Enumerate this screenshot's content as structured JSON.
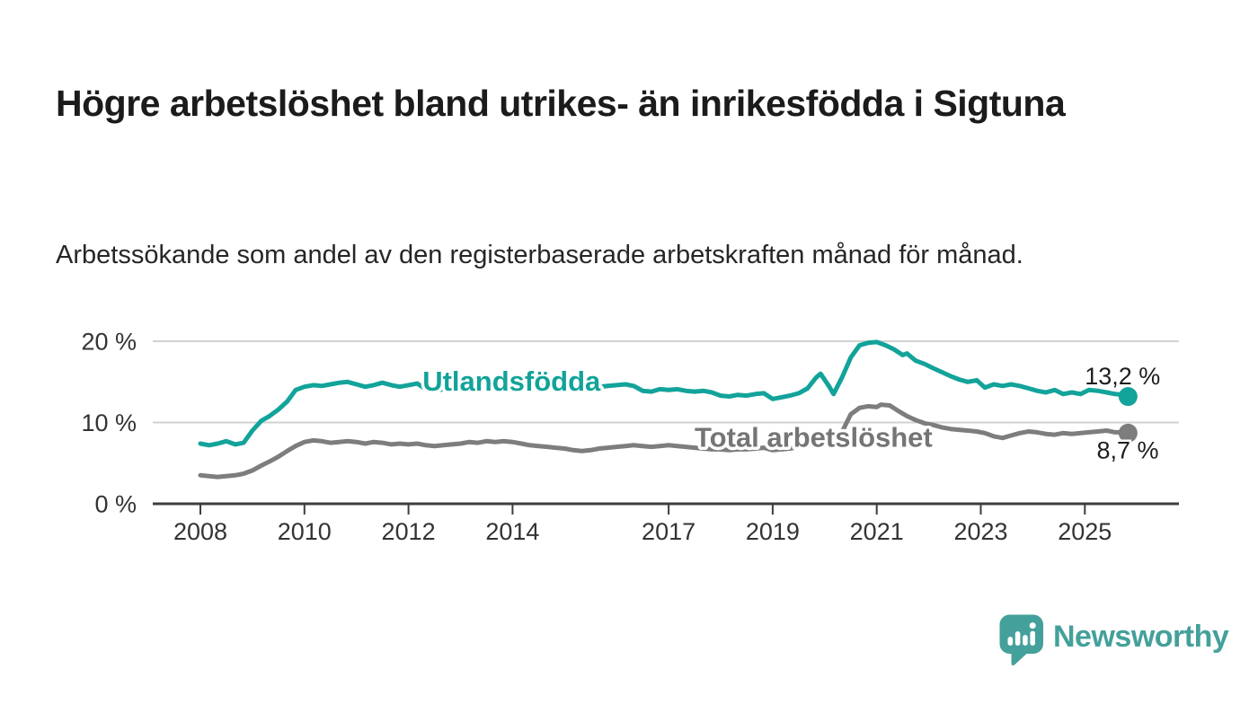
{
  "title": "Högre arbetslöshet bland utrikes- än inrikesfödda i Sigtuna",
  "subtitle": "Arbetssökande som andel av den registerbaserade arbetskraften månad för månad.",
  "branding": {
    "logo_text": "Newsworthy",
    "logo_icon": "bar-chart-speech-bubble",
    "brand_color": "#44a09a"
  },
  "colors": {
    "foreign_born_line": "#12a39a",
    "total_line": "#7d7d7d",
    "total_label": "#757575",
    "gridline": "#d2d2d2",
    "axis": "#3d3d3d",
    "tick_label": "#333333",
    "end_label": "#1d1d1d",
    "background": "#ffffff"
  },
  "chart_data": {
    "type": "line",
    "title": "Högre arbetslöshet bland utrikes- än inrikesfödda i Sigtuna",
    "subtitle": "Arbetssökande som andel av den registerbaserade arbetskraften månad för månad.",
    "xlabel": "",
    "ylabel": "",
    "x_unit": "decimal year (monthly observations)",
    "y_unit": "percent of labour force",
    "ylim": [
      0,
      22
    ],
    "xlim": [
      2007.1,
      2026.9
    ],
    "grid": "horizontal-only",
    "legend_position": "inline-on-lines",
    "yticks": [
      {
        "value": 0,
        "label": "0 %"
      },
      {
        "value": 10,
        "label": "10 %"
      },
      {
        "value": 20,
        "label": "20 %"
      }
    ],
    "xticks": [
      {
        "value": 2008,
        "label": "2008"
      },
      {
        "value": 2010,
        "label": "2010"
      },
      {
        "value": 2012,
        "label": "2012"
      },
      {
        "value": 2014,
        "label": "2014"
      },
      {
        "value": 2017,
        "label": "2017"
      },
      {
        "value": 2019,
        "label": "2019"
      },
      {
        "value": 2021,
        "label": "2021"
      },
      {
        "value": 2023,
        "label": "2023"
      },
      {
        "value": 2025,
        "label": "2025"
      }
    ],
    "series": [
      {
        "name": "Utlandsfödda",
        "color": "#12a39a",
        "end_value": 13.2,
        "end_label": "13,2 %",
        "label_anchor": {
          "year": 2012.27,
          "pct": 13.9,
          "align": "start"
        },
        "end_label_anchor": {
          "year": 2026.45,
          "pct": 14.7,
          "align": "end"
        },
        "points": [
          [
            2008.0,
            7.4
          ],
          [
            2008.17,
            7.2
          ],
          [
            2008.33,
            7.4
          ],
          [
            2008.5,
            7.7
          ],
          [
            2008.67,
            7.3
          ],
          [
            2008.83,
            7.5
          ],
          [
            2009.0,
            9.0
          ],
          [
            2009.17,
            10.2
          ],
          [
            2009.33,
            10.8
          ],
          [
            2009.5,
            11.6
          ],
          [
            2009.67,
            12.6
          ],
          [
            2009.83,
            14.0
          ],
          [
            2010.0,
            14.4
          ],
          [
            2010.17,
            14.6
          ],
          [
            2010.33,
            14.5
          ],
          [
            2010.5,
            14.7
          ],
          [
            2010.67,
            14.9
          ],
          [
            2010.83,
            15.0
          ],
          [
            2011.0,
            14.7
          ],
          [
            2011.17,
            14.4
          ],
          [
            2011.33,
            14.6
          ],
          [
            2011.5,
            14.9
          ],
          [
            2011.67,
            14.6
          ],
          [
            2011.83,
            14.4
          ],
          [
            2012.0,
            14.6
          ],
          [
            2012.17,
            14.8
          ],
          [
            2012.33,
            14.1
          ],
          [
            2012.5,
            13.9
          ],
          [
            2012.67,
            14.1
          ],
          [
            2012.83,
            14.3
          ],
          [
            2013.0,
            14.5
          ],
          [
            2013.17,
            14.7
          ],
          [
            2013.33,
            14.5
          ],
          [
            2013.5,
            14.6
          ],
          [
            2013.67,
            14.8
          ],
          [
            2013.83,
            14.6
          ],
          [
            2014.0,
            14.7
          ],
          [
            2014.17,
            14.9
          ],
          [
            2014.33,
            14.3
          ],
          [
            2014.5,
            14.6
          ],
          [
            2014.67,
            14.4
          ],
          [
            2014.83,
            14.6
          ],
          [
            2015.0,
            14.5
          ],
          [
            2015.17,
            14.3
          ],
          [
            2015.33,
            14.5
          ],
          [
            2015.5,
            14.6
          ],
          [
            2015.67,
            14.4
          ],
          [
            2015.83,
            14.5
          ],
          [
            2016.0,
            14.6
          ],
          [
            2016.17,
            14.7
          ],
          [
            2016.33,
            14.5
          ],
          [
            2016.5,
            13.9
          ],
          [
            2016.67,
            13.8
          ],
          [
            2016.83,
            14.1
          ],
          [
            2017.0,
            14.0
          ],
          [
            2017.17,
            14.1
          ],
          [
            2017.33,
            13.9
          ],
          [
            2017.5,
            13.8
          ],
          [
            2017.67,
            13.9
          ],
          [
            2017.83,
            13.7
          ],
          [
            2018.0,
            13.3
          ],
          [
            2018.17,
            13.2
          ],
          [
            2018.33,
            13.4
          ],
          [
            2018.5,
            13.3
          ],
          [
            2018.67,
            13.5
          ],
          [
            2018.83,
            13.6
          ],
          [
            2019.0,
            12.9
          ],
          [
            2019.17,
            13.1
          ],
          [
            2019.33,
            13.3
          ],
          [
            2019.5,
            13.6
          ],
          [
            2019.67,
            14.2
          ],
          [
            2019.83,
            15.5
          ],
          [
            2019.92,
            16.0
          ],
          [
            2020.08,
            14.5
          ],
          [
            2020.17,
            13.5
          ],
          [
            2020.33,
            15.5
          ],
          [
            2020.5,
            18.0
          ],
          [
            2020.67,
            19.5
          ],
          [
            2020.83,
            19.8
          ],
          [
            2021.0,
            19.9
          ],
          [
            2021.17,
            19.5
          ],
          [
            2021.33,
            19.0
          ],
          [
            2021.5,
            18.3
          ],
          [
            2021.58,
            18.5
          ],
          [
            2021.75,
            17.6
          ],
          [
            2021.92,
            17.2
          ],
          [
            2022.08,
            16.7
          ],
          [
            2022.25,
            16.2
          ],
          [
            2022.42,
            15.7
          ],
          [
            2022.58,
            15.3
          ],
          [
            2022.75,
            15.0
          ],
          [
            2022.92,
            15.2
          ],
          [
            2023.08,
            14.3
          ],
          [
            2023.25,
            14.7
          ],
          [
            2023.42,
            14.5
          ],
          [
            2023.58,
            14.7
          ],
          [
            2023.75,
            14.5
          ],
          [
            2023.92,
            14.2
          ],
          [
            2024.08,
            13.9
          ],
          [
            2024.25,
            13.7
          ],
          [
            2024.42,
            14.0
          ],
          [
            2024.58,
            13.5
          ],
          [
            2024.75,
            13.7
          ],
          [
            2024.92,
            13.5
          ],
          [
            2025.08,
            14.0
          ],
          [
            2025.25,
            13.9
          ],
          [
            2025.42,
            13.7
          ],
          [
            2025.58,
            13.5
          ],
          [
            2025.75,
            13.4
          ],
          [
            2025.83,
            13.2
          ]
        ]
      },
      {
        "name": "Total arbetslöshet",
        "color": "#7d7d7d",
        "end_value": 8.7,
        "end_label": "8,7 %",
        "label_anchor": {
          "year": 2017.5,
          "pct": 7.0,
          "align": "start"
        },
        "end_label_anchor": {
          "year": 2026.42,
          "pct": 5.6,
          "align": "end"
        },
        "points": [
          [
            2008.0,
            3.5
          ],
          [
            2008.17,
            3.4
          ],
          [
            2008.33,
            3.3
          ],
          [
            2008.5,
            3.4
          ],
          [
            2008.67,
            3.5
          ],
          [
            2008.83,
            3.7
          ],
          [
            2009.0,
            4.1
          ],
          [
            2009.17,
            4.7
          ],
          [
            2009.33,
            5.2
          ],
          [
            2009.5,
            5.8
          ],
          [
            2009.67,
            6.5
          ],
          [
            2009.83,
            7.1
          ],
          [
            2010.0,
            7.6
          ],
          [
            2010.17,
            7.8
          ],
          [
            2010.33,
            7.7
          ],
          [
            2010.5,
            7.5
          ],
          [
            2010.67,
            7.6
          ],
          [
            2010.83,
            7.7
          ],
          [
            2011.0,
            7.6
          ],
          [
            2011.17,
            7.4
          ],
          [
            2011.33,
            7.6
          ],
          [
            2011.5,
            7.5
          ],
          [
            2011.67,
            7.3
          ],
          [
            2011.83,
            7.4
          ],
          [
            2012.0,
            7.3
          ],
          [
            2012.17,
            7.4
          ],
          [
            2012.33,
            7.2
          ],
          [
            2012.5,
            7.1
          ],
          [
            2012.67,
            7.2
          ],
          [
            2012.83,
            7.3
          ],
          [
            2013.0,
            7.4
          ],
          [
            2013.17,
            7.6
          ],
          [
            2013.33,
            7.5
          ],
          [
            2013.5,
            7.7
          ],
          [
            2013.67,
            7.6
          ],
          [
            2013.83,
            7.7
          ],
          [
            2014.0,
            7.6
          ],
          [
            2014.17,
            7.4
          ],
          [
            2014.33,
            7.2
          ],
          [
            2014.5,
            7.1
          ],
          [
            2014.67,
            7.0
          ],
          [
            2014.83,
            6.9
          ],
          [
            2015.0,
            6.8
          ],
          [
            2015.17,
            6.6
          ],
          [
            2015.33,
            6.5
          ],
          [
            2015.5,
            6.6
          ],
          [
            2015.67,
            6.8
          ],
          [
            2015.83,
            6.9
          ],
          [
            2016.0,
            7.0
          ],
          [
            2016.17,
            7.1
          ],
          [
            2016.33,
            7.2
          ],
          [
            2016.5,
            7.1
          ],
          [
            2016.67,
            7.0
          ],
          [
            2016.83,
            7.1
          ],
          [
            2017.0,
            7.2
          ],
          [
            2017.17,
            7.1
          ],
          [
            2017.33,
            7.0
          ],
          [
            2017.5,
            6.9
          ],
          [
            2017.67,
            6.8
          ],
          [
            2017.83,
            6.7
          ],
          [
            2018.0,
            6.7
          ],
          [
            2018.17,
            6.6
          ],
          [
            2018.33,
            6.7
          ],
          [
            2018.5,
            6.7
          ],
          [
            2018.67,
            6.8
          ],
          [
            2018.83,
            6.9
          ],
          [
            2019.0,
            6.6
          ],
          [
            2019.17,
            6.7
          ],
          [
            2019.33,
            6.8
          ],
          [
            2019.5,
            7.0
          ],
          [
            2019.67,
            7.2
          ],
          [
            2019.83,
            7.4
          ],
          [
            2020.0,
            7.3
          ],
          [
            2020.17,
            7.2
          ],
          [
            2020.33,
            8.8
          ],
          [
            2020.5,
            11.0
          ],
          [
            2020.67,
            11.8
          ],
          [
            2020.83,
            12.0
          ],
          [
            2021.0,
            11.9
          ],
          [
            2021.08,
            12.2
          ],
          [
            2021.25,
            12.1
          ],
          [
            2021.42,
            11.4
          ],
          [
            2021.58,
            10.8
          ],
          [
            2021.75,
            10.3
          ],
          [
            2021.92,
            9.9
          ],
          [
            2022.08,
            9.7
          ],
          [
            2022.25,
            9.4
          ],
          [
            2022.42,
            9.2
          ],
          [
            2022.58,
            9.1
          ],
          [
            2022.75,
            9.0
          ],
          [
            2022.92,
            8.9
          ],
          [
            2023.08,
            8.7
          ],
          [
            2023.25,
            8.3
          ],
          [
            2023.42,
            8.1
          ],
          [
            2023.58,
            8.4
          ],
          [
            2023.75,
            8.7
          ],
          [
            2023.92,
            8.9
          ],
          [
            2024.08,
            8.8
          ],
          [
            2024.25,
            8.6
          ],
          [
            2024.42,
            8.5
          ],
          [
            2024.58,
            8.7
          ],
          [
            2024.75,
            8.6
          ],
          [
            2024.92,
            8.7
          ],
          [
            2025.08,
            8.8
          ],
          [
            2025.25,
            8.9
          ],
          [
            2025.42,
            9.0
          ],
          [
            2025.58,
            8.8
          ],
          [
            2025.75,
            8.8
          ],
          [
            2025.83,
            8.7
          ]
        ]
      }
    ]
  }
}
